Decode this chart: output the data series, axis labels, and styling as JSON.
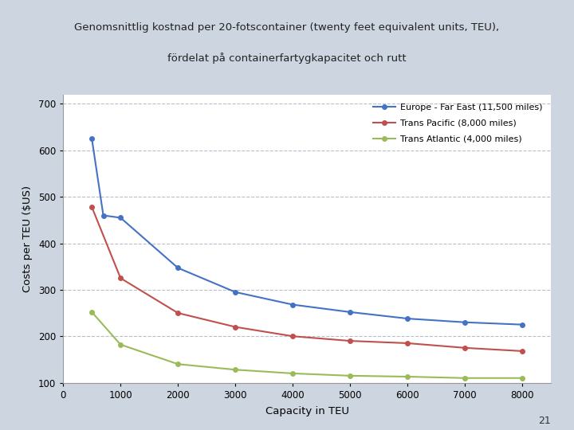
{
  "title_line1": "Genomsnittlig kostnad per 20-fotscontainer (twenty feet equivalent units, TEU),",
  "title_line2": "fördelat på containerfartygkapacitet och rutt",
  "xlabel": "Capacity in TEU",
  "ylabel": "Costs per TEU ($US)",
  "page_number": "21",
  "background_color": "#cdd5e0",
  "plot_bg_color": "#ffffff",
  "title_bg_color": "#cdd5e0",
  "xlim": [
    0,
    8500
  ],
  "ylim": [
    100,
    720
  ],
  "xticks": [
    0,
    1000,
    2000,
    3000,
    4000,
    5000,
    6000,
    7000,
    8000
  ],
  "yticks": [
    100,
    200,
    300,
    400,
    500,
    600,
    700
  ],
  "grid_color": "#b0b8c8",
  "series": [
    {
      "label": "Europe - Far East (11,500 miles)",
      "color": "#4472c4",
      "marker": "o",
      "x": [
        500,
        700,
        1000,
        2000,
        3000,
        4000,
        5000,
        6000,
        7000,
        8000
      ],
      "y": [
        625,
        460,
        455,
        347,
        295,
        268,
        252,
        238,
        230,
        225
      ]
    },
    {
      "label": "Trans Pacific (8,000 miles)",
      "color": "#c0504d",
      "marker": "o",
      "x": [
        500,
        1000,
        2000,
        3000,
        4000,
        5000,
        6000,
        7000,
        8000
      ],
      "y": [
        478,
        325,
        250,
        220,
        200,
        190,
        185,
        175,
        168
      ]
    },
    {
      "label": "Trans Atlantic (4,000 miles)",
      "color": "#9bbb59",
      "marker": "o",
      "x": [
        500,
        1000,
        2000,
        3000,
        4000,
        5000,
        6000,
        7000,
        8000
      ],
      "y": [
        252,
        182,
        140,
        128,
        120,
        115,
        113,
        110,
        110
      ]
    }
  ]
}
